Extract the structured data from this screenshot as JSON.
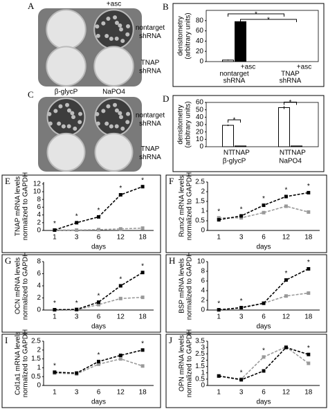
{
  "chart_data": [
    {
      "type": "image",
      "label": "A",
      "top_label": "+asc",
      "row_labels": [
        [
          "nontarget",
          "shRNA"
        ],
        [
          "TNAP",
          "shRNA"
        ]
      ]
    },
    {
      "type": "bar",
      "label": "B",
      "ylabel": [
        "densitometry",
        "(arbitrary units)"
      ],
      "ylim": [
        0,
        100
      ],
      "yticks": [
        0,
        20,
        40,
        60,
        80
      ],
      "categories": [
        [
          "nontarget",
          "shRNA"
        ],
        [
          "TNAP",
          "shRNA"
        ]
      ],
      "group_tags": [
        "+asc",
        "+asc"
      ],
      "series": [
        {
          "color": "#ffffff",
          "values": [
            3,
            0
          ],
          "errors": [
            1,
            0
          ]
        },
        {
          "color": "#000000",
          "values": [
            78,
            0
          ],
          "errors": [
            3,
            0
          ]
        }
      ],
      "annotations": [
        "*",
        "*"
      ]
    },
    {
      "type": "image",
      "label": "C",
      "top_labels": [
        "β-glycP",
        "NaPO4"
      ],
      "row_labels": [
        [
          "nontarget",
          "shRNA"
        ],
        [
          "TNAP",
          "shRNA"
        ]
      ]
    },
    {
      "type": "bar",
      "label": "D",
      "ylabel": [
        "densitometry",
        "(arbitrary units)"
      ],
      "ylim": [
        0,
        60
      ],
      "yticks": [
        0,
        10,
        20,
        30,
        40,
        50,
        60
      ],
      "categories": [
        [
          "β-glycP"
        ],
        [
          "NaPO4"
        ]
      ],
      "bar_labels": [
        "NT",
        "TNAP"
      ],
      "series": [
        {
          "color": "#ffffff",
          "values": [
            29,
            53
          ],
          "errors": [
            1,
            2
          ]
        },
        {
          "color": "#ffffff",
          "values": [
            1,
            1
          ],
          "errors": [
            0,
            0
          ]
        }
      ],
      "annotations": [
        "*",
        "*"
      ]
    },
    {
      "type": "line",
      "label": "E",
      "ylabel": [
        "TNAP mRNA levels",
        "normalized to GAPDH"
      ],
      "xlabel": "days",
      "categories": [
        "1",
        "3",
        "6",
        "12",
        "18"
      ],
      "ylim": [
        0,
        12.5
      ],
      "yticks": [
        0,
        2,
        4,
        6,
        8,
        10,
        12
      ],
      "series": [
        {
          "color": "#000000",
          "values": [
            0.1,
            2,
            3.5,
            9.2,
            11.3
          ]
        },
        {
          "color": "#999999",
          "values": [
            0.1,
            0.1,
            0.2,
            0.4,
            0.6
          ]
        }
      ],
      "stars": [
        "*",
        "*",
        "*",
        "*",
        "*"
      ]
    },
    {
      "type": "line",
      "label": "F",
      "ylabel": [
        "Runx2 mRNA levels",
        "normalized to GAPDH"
      ],
      "xlabel": "days",
      "categories": [
        "1",
        "3",
        "6",
        "12",
        "18"
      ],
      "ylim": [
        0,
        2.5
      ],
      "yticks": [
        0,
        0.5,
        1,
        1.5,
        2,
        2.5
      ],
      "series": [
        {
          "color": "#000000",
          "values": [
            0.55,
            0.75,
            1.3,
            1.75,
            1.95
          ]
        },
        {
          "color": "#999999",
          "values": [
            0.65,
            0.65,
            0.92,
            1.25,
            0.95
          ]
        }
      ],
      "stars": [
        "*",
        "*",
        "*",
        "*",
        "*"
      ]
    },
    {
      "type": "line",
      "label": "G",
      "ylabel": [
        "OCN mRNA levels",
        "normalized to GAPDH"
      ],
      "xlabel": "days",
      "categories": [
        "1",
        "3",
        "6",
        "12",
        "18"
      ],
      "ylim": [
        0,
        8
      ],
      "yticks": [
        0,
        2,
        4,
        6,
        8
      ],
      "series": [
        {
          "color": "#000000",
          "values": [
            0.05,
            0.1,
            1.3,
            4,
            6.2
          ]
        },
        {
          "color": "#999999",
          "values": [
            0.05,
            0.05,
            0.9,
            1.9,
            2.1
          ]
        }
      ],
      "stars": [
        "*",
        "*",
        "*",
        "*",
        "*"
      ]
    },
    {
      "type": "line",
      "label": "H",
      "ylabel": [
        "BSP mRNA levels",
        "normalized to GAPDH"
      ],
      "xlabel": "days",
      "categories": [
        "1",
        "3",
        "6",
        "12",
        "18"
      ],
      "ylim": [
        0,
        10
      ],
      "yticks": [
        0,
        2,
        4,
        6,
        8,
        10
      ],
      "series": [
        {
          "color": "#000000",
          "values": [
            0.05,
            0.5,
            1.4,
            6.2,
            8.5
          ]
        },
        {
          "color": "#999999",
          "values": [
            0.05,
            0.4,
            1.4,
            2.9,
            3.5
          ]
        }
      ],
      "stars": [
        "*",
        "*",
        null,
        "*",
        "*"
      ]
    },
    {
      "type": "line",
      "label": "I",
      "ylabel": [
        "Col1a1 mRNA levels",
        "normalized to GAPDH"
      ],
      "xlabel": "days",
      "categories": [
        "1",
        "3",
        "6",
        "12",
        "18"
      ],
      "ylim": [
        0,
        2.5
      ],
      "yticks": [
        0,
        0.5,
        1,
        1.5,
        2,
        2.5
      ],
      "series": [
        {
          "color": "#000000",
          "values": [
            0.75,
            0.7,
            1.35,
            1.7,
            2.0
          ]
        },
        {
          "color": "#999999",
          "values": [
            0.7,
            0.65,
            1.2,
            1.5,
            1.1
          ]
        }
      ],
      "stars": [
        "*",
        null,
        "*",
        null,
        "*"
      ]
    },
    {
      "type": "line",
      "label": "J",
      "ylabel": [
        "OPN mRNA levels",
        "normalized to GAPDH"
      ],
      "xlabel": "days",
      "categories": [
        "1",
        "3",
        "6",
        "12",
        "18"
      ],
      "ylim": [
        0,
        3.5
      ],
      "yticks": [
        0,
        0.5,
        1,
        1.5,
        2,
        2.5,
        3,
        3.5
      ],
      "series": [
        {
          "color": "#000000",
          "values": [
            0.75,
            0.45,
            1.15,
            3.0,
            2.45
          ]
        },
        {
          "color": "#999999",
          "values": [
            0.75,
            0.5,
            2.25,
            3.05,
            1.75
          ]
        }
      ],
      "stars": [
        null,
        "*",
        "*",
        null,
        "*"
      ]
    }
  ]
}
